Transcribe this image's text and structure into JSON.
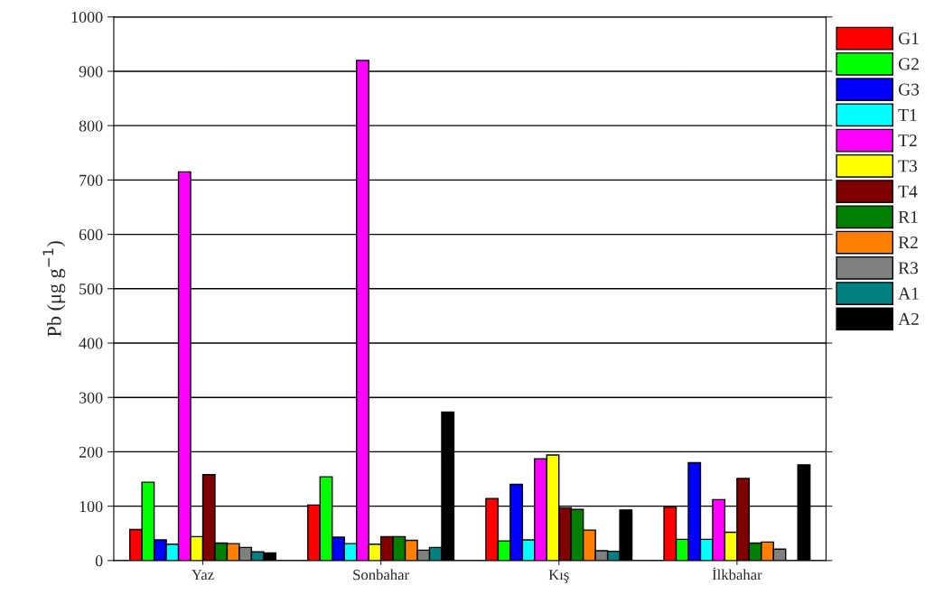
{
  "chart_data": {
    "type": "bar",
    "ylabel": "Pb (μg g$^{−1}$)",
    "categories": [
      "Yaz",
      "Sonbahar",
      "Kış",
      "İlkbahar"
    ],
    "series": [
      {
        "name": "G1",
        "color": "#ff0000",
        "values": [
          57,
          102,
          114,
          98
        ]
      },
      {
        "name": "G2",
        "color": "#00ff00",
        "values": [
          144,
          154,
          36,
          39
        ]
      },
      {
        "name": "G3",
        "color": "#0000ff",
        "values": [
          38,
          43,
          140,
          180
        ]
      },
      {
        "name": "T1",
        "color": "#00ffff",
        "values": [
          30,
          31,
          38,
          39
        ]
      },
      {
        "name": "T2",
        "color": "#ff00ff",
        "values": [
          715,
          920,
          187,
          112
        ]
      },
      {
        "name": "T3",
        "color": "#ffff00",
        "values": [
          44,
          30,
          194,
          52
        ]
      },
      {
        "name": "T4",
        "color": "#800000",
        "values": [
          158,
          44,
          97,
          151
        ]
      },
      {
        "name": "R1",
        "color": "#008000",
        "values": [
          32,
          44,
          94,
          32
        ]
      },
      {
        "name": "R2",
        "color": "#ff8000",
        "values": [
          31,
          37,
          56,
          34
        ]
      },
      {
        "name": "R3",
        "color": "#808080",
        "values": [
          24,
          19,
          18,
          21
        ]
      },
      {
        "name": "A1",
        "color": "#008080",
        "values": [
          16,
          24,
          17,
          null
        ]
      },
      {
        "name": "A2",
        "color": "#000000",
        "values": [
          14,
          273,
          93,
          176
        ]
      }
    ],
    "ylim": [
      0,
      1000
    ],
    "yticks": [
      0,
      100,
      200,
      300,
      400,
      500,
      600,
      700,
      800,
      900,
      1000
    ],
    "grid": "y",
    "legend": "top right"
  }
}
